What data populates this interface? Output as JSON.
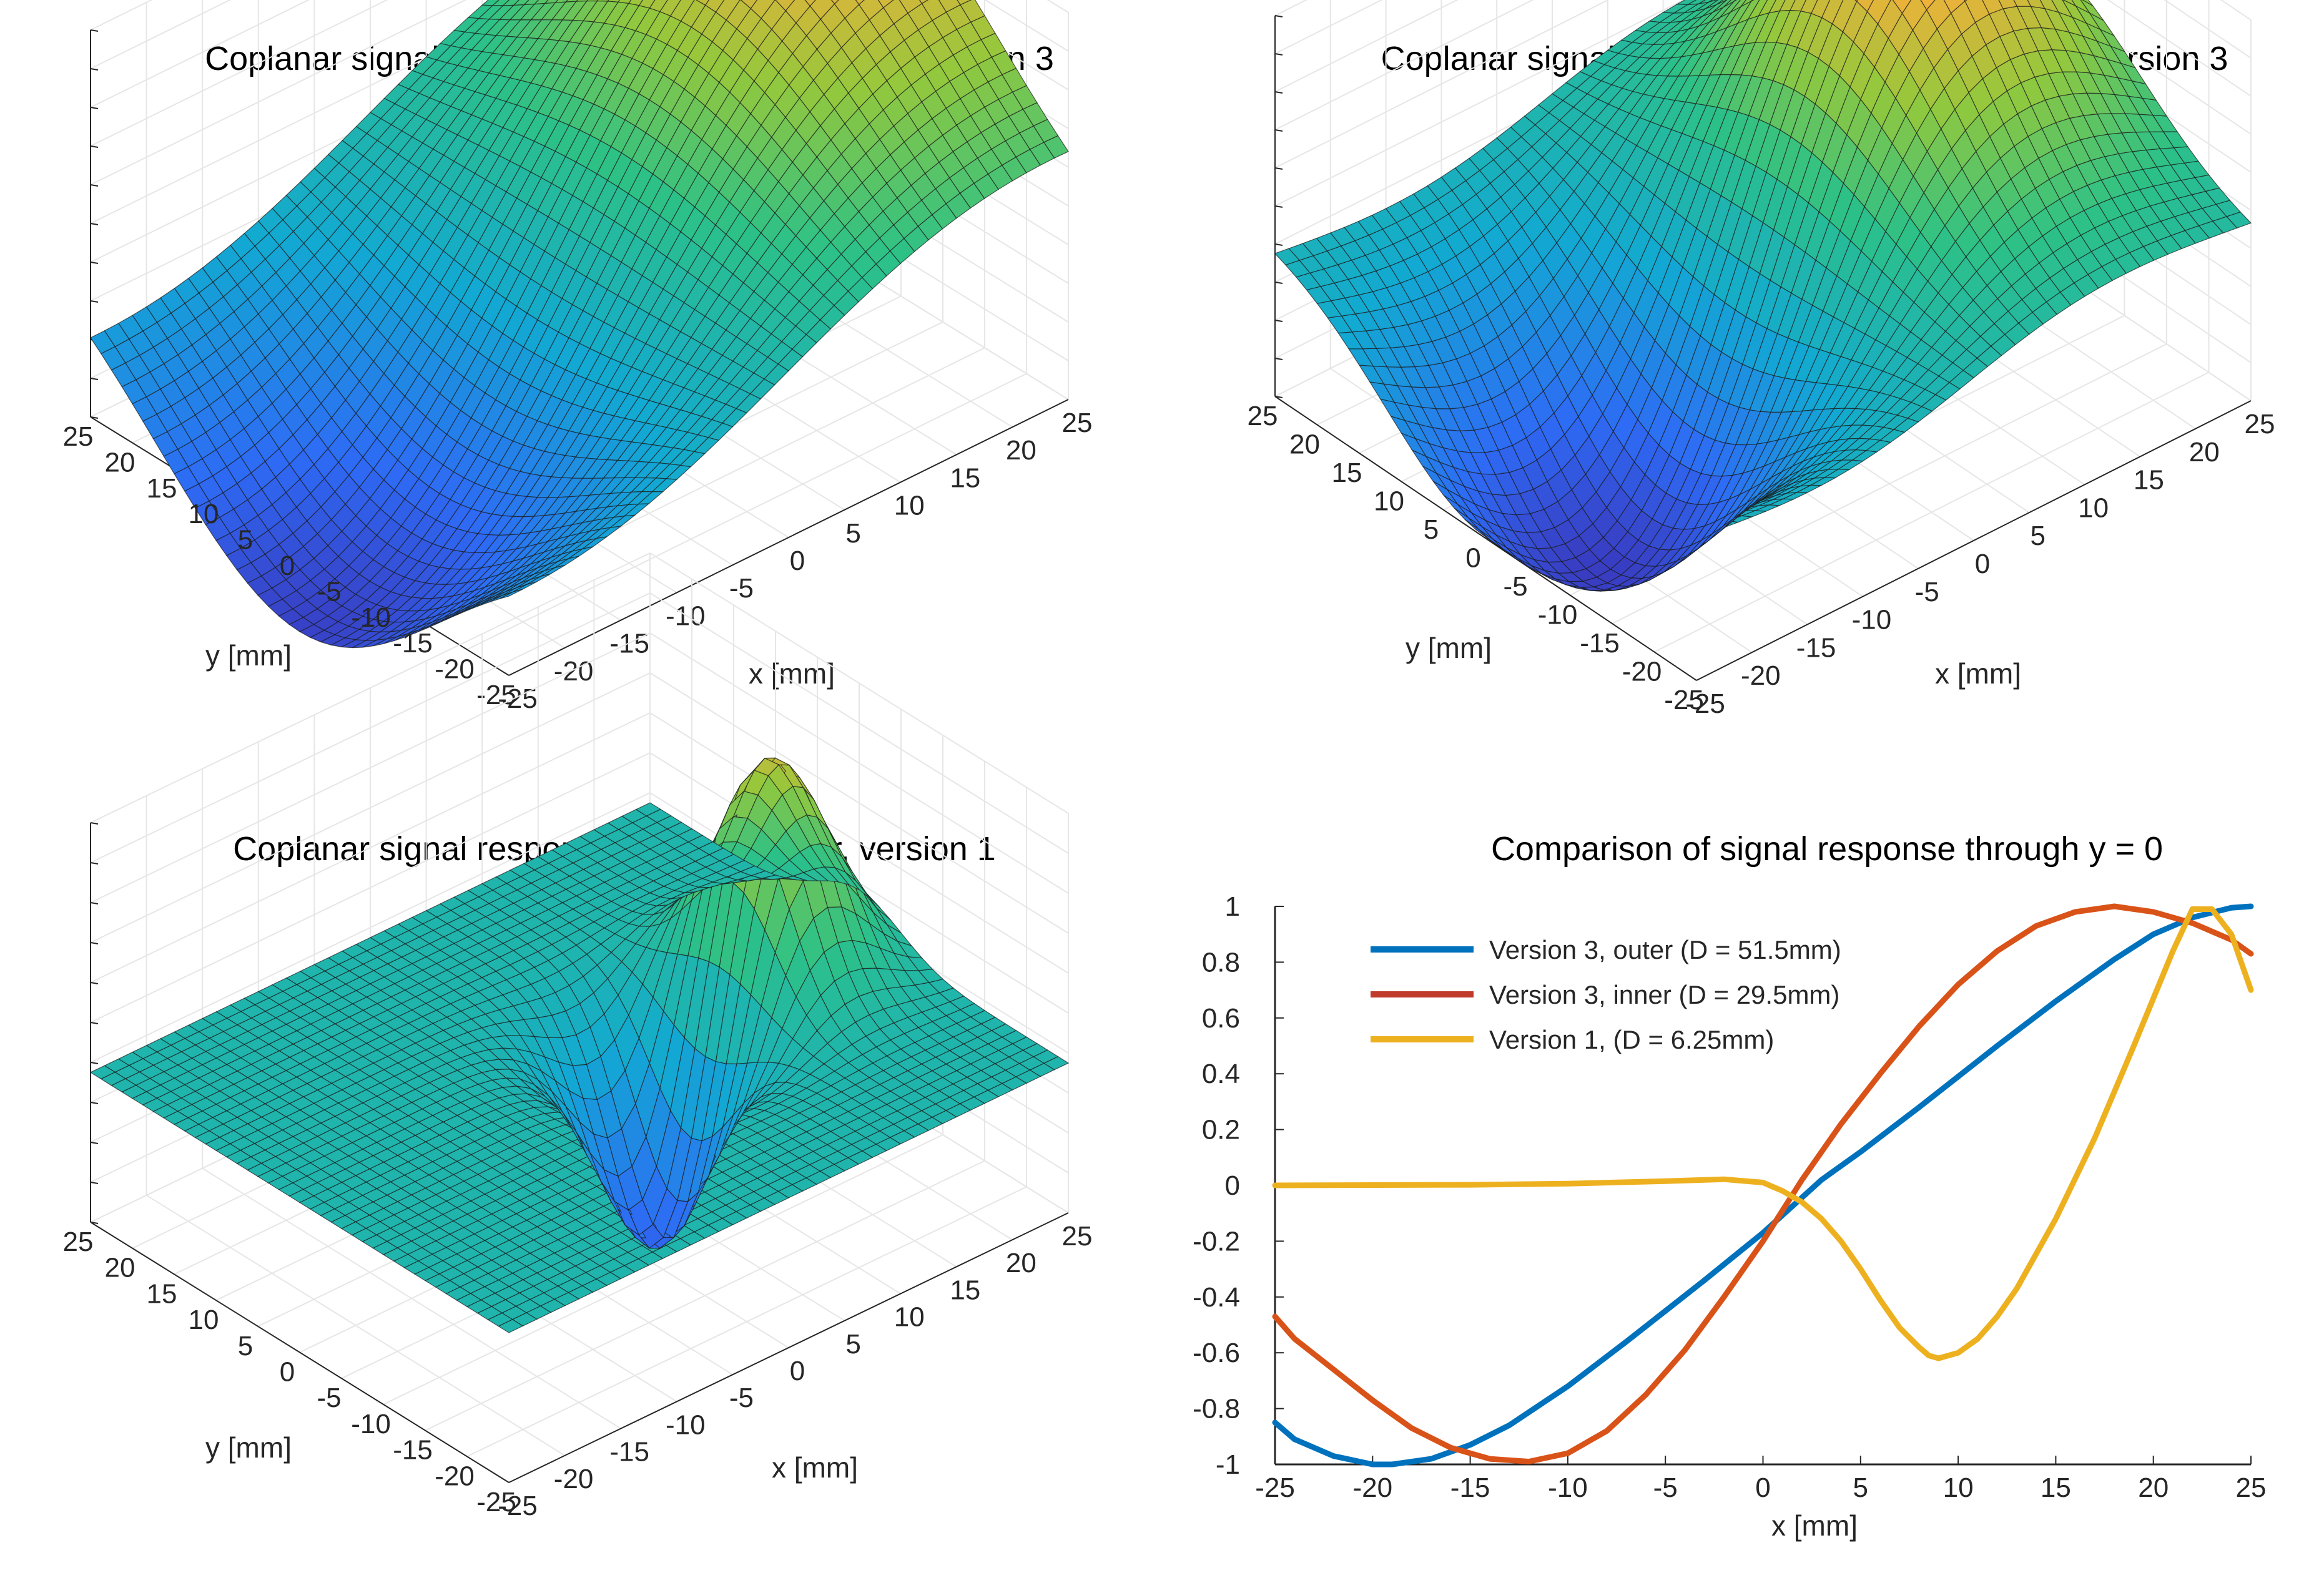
{
  "chart_data": [
    {
      "type": "surface",
      "title": "Coplanar signal response of outer gradiometer, version 3",
      "xlabel": "x [mm]",
      "ylabel": "y [mm]",
      "xlim": [
        -25,
        25
      ],
      "ylim": [
        -25,
        25
      ],
      "x_ticks": [
        "-25",
        "-20",
        "-15",
        "-10",
        "-5",
        "0",
        "5",
        "10",
        "15",
        "20",
        "25"
      ],
      "y_ticks": [
        "25",
        "20",
        "15",
        "10",
        "5",
        "0",
        "-5",
        "-10",
        "-15",
        "-20",
        "-25"
      ],
      "surface": {
        "shape": "dipole",
        "peak_x": 18,
        "trough_x": -19,
        "sigma_x": 21,
        "sigma_y": 17
      }
    },
    {
      "type": "surface",
      "title": "Coplanar signal response of inner gradiometer, version 3",
      "xlabel": "x [mm]",
      "ylabel": "y [mm]",
      "xlim": [
        -25,
        25
      ],
      "ylim": [
        -25,
        25
      ],
      "x_ticks": [
        "-25",
        "-20",
        "-15",
        "-10",
        "-5",
        "0",
        "5",
        "10",
        "15",
        "20",
        "25"
      ],
      "y_ticks": [
        "25",
        "20",
        "15",
        "10",
        "5",
        "0",
        "-5",
        "-10",
        "-15",
        "-20",
        "-25"
      ],
      "surface": {
        "shape": "dipole",
        "peak_x": 11,
        "trough_x": -12,
        "sigma_x": 12,
        "sigma_y": 12
      }
    },
    {
      "type": "surface",
      "title": "Coplanar signal response of gradiometer, version 1",
      "xlabel": "x [mm]",
      "ylabel": "y [mm]",
      "xlim": [
        -25,
        25
      ],
      "ylim": [
        -25,
        25
      ],
      "x_ticks": [
        "-25",
        "-20",
        "-15",
        "-10",
        "-5",
        "0",
        "5",
        "10",
        "15",
        "20",
        "25"
      ],
      "y_ticks": [
        "25",
        "20",
        "15",
        "10",
        "5",
        "0",
        "-5",
        "-10",
        "-15",
        "-20",
        "-25"
      ],
      "surface": {
        "shape": "dipole",
        "peak_x": 15,
        "trough_x": 9,
        "sigma_x": 5,
        "sigma_y": 5
      }
    },
    {
      "type": "line",
      "title": "Comparison of signal response through y = 0",
      "xlabel": "x [mm]",
      "ylabel": "",
      "xlim": [
        -25,
        25
      ],
      "ylim": [
        -1,
        1
      ],
      "x_ticks": [
        "-25",
        "-20",
        "-15",
        "-10",
        "-5",
        "0",
        "5",
        "10",
        "15",
        "20",
        "25"
      ],
      "y_ticks": [
        "1",
        "0.8",
        "0.6",
        "0.4",
        "0.2",
        "0",
        "-0.2",
        "-0.4",
        "-0.6",
        "-0.8",
        "-1"
      ],
      "legend_position": "top-left",
      "series": [
        {
          "name": "Version 3, outer (D = 51.5mm)",
          "color": "#0072bd",
          "x": [
            -25,
            -24,
            -22,
            -20,
            -19,
            -17,
            -15,
            -13,
            -10,
            -7,
            -5,
            -3,
            0,
            3,
            5,
            8,
            10,
            12,
            15,
            18,
            20,
            22,
            24,
            25
          ],
          "y": [
            -0.85,
            -0.91,
            -0.97,
            -1.0,
            -1.0,
            -0.98,
            -0.93,
            -0.86,
            -0.72,
            -0.56,
            -0.45,
            -0.34,
            -0.17,
            0.02,
            0.12,
            0.28,
            0.39,
            0.5,
            0.66,
            0.81,
            0.9,
            0.96,
            0.995,
            1.0
          ]
        },
        {
          "name": "Version 3, inner (D = 29.5mm)",
          "color": "#d95319",
          "x": [
            -25,
            -24,
            -22,
            -20,
            -18,
            -16,
            -14,
            -12,
            -10,
            -8,
            -6,
            -4,
            -2,
            0,
            2,
            4,
            6,
            8,
            10,
            12,
            14,
            16,
            18,
            20,
            22,
            24,
            25
          ],
          "y": [
            -0.47,
            -0.55,
            -0.66,
            -0.77,
            -0.87,
            -0.94,
            -0.98,
            -0.99,
            -0.96,
            -0.88,
            -0.75,
            -0.59,
            -0.4,
            -0.2,
            0.02,
            0.22,
            0.4,
            0.57,
            0.72,
            0.84,
            0.93,
            0.98,
            1.0,
            0.98,
            0.94,
            0.88,
            0.83
          ]
        },
        {
          "name": "Version 1, (D = 6.25mm)",
          "color": "#edb120",
          "x": [
            -25,
            -15,
            -10,
            -5,
            -2,
            0,
            1,
            2,
            3,
            4,
            5,
            6,
            7,
            8,
            8.5,
            9,
            10,
            11,
            12,
            13,
            15,
            17,
            19,
            20,
            21,
            22,
            23,
            24,
            25
          ],
          "y": [
            0.0,
            0.002,
            0.006,
            0.015,
            0.022,
            0.01,
            -0.02,
            -0.06,
            -0.12,
            -0.2,
            -0.3,
            -0.41,
            -0.51,
            -0.58,
            -0.61,
            -0.62,
            -0.6,
            -0.55,
            -0.47,
            -0.37,
            -0.12,
            0.17,
            0.5,
            0.67,
            0.84,
            0.99,
            0.99,
            0.9,
            0.7
          ]
        }
      ]
    }
  ]
}
